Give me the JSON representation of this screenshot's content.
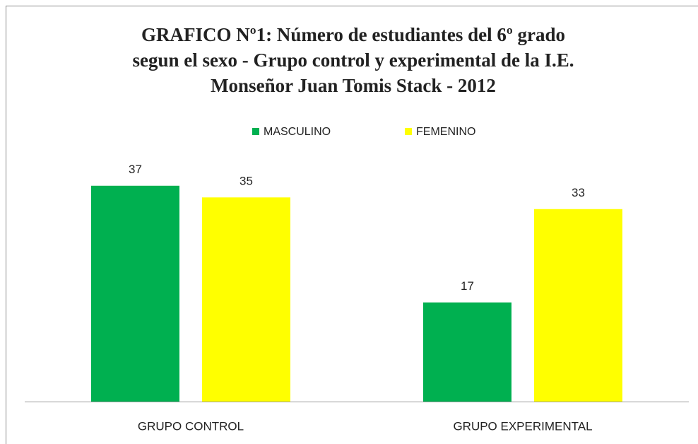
{
  "chart_data": {
    "type": "bar",
    "title": [
      "GRAFICO Nº1: Número de estudiantes del 6º grado",
      "segun el sexo - Grupo control y experimental de la I.E.",
      "Monseñor Juan Tomis Stack - 2012"
    ],
    "categories": [
      "GRUPO CONTROL",
      "GRUPO EXPERIMENTAL"
    ],
    "series": [
      {
        "name": "MASCULINO",
        "color": "#00b050",
        "values": [
          37,
          17
        ]
      },
      {
        "name": "FEMENINO",
        "color": "#ffff00",
        "values": [
          35,
          33
        ]
      }
    ],
    "ylim": [
      0,
      40
    ],
    "legend": "top"
  }
}
